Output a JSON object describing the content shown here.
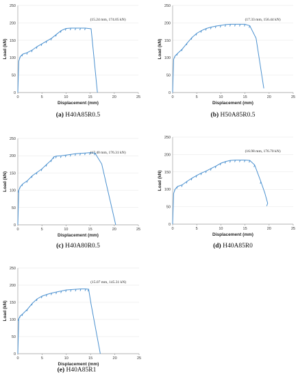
{
  "chart_data": [
    {
      "type": "line",
      "caption_letter": "(a)",
      "caption_name": " H40A85R0.5",
      "annotation": "(15.24 mm, 174.05 kN)",
      "xlabel": "Displacement (mm)",
      "ylabel": "Load (kN)",
      "xlim": [
        0,
        25
      ],
      "ylim": [
        0,
        250
      ],
      "xticks": [
        0,
        5,
        10,
        15,
        20,
        25
      ],
      "yticks": [
        0,
        50,
        100,
        150,
        200,
        250
      ],
      "grid": "horizontal",
      "series": [
        {
          "x": [
            0,
            0.2,
            0.5,
            1,
            2,
            3,
            4,
            5,
            6,
            7,
            8,
            9,
            10,
            11,
            12,
            13,
            14,
            15.2,
            16.5
          ],
          "y": [
            0,
            90,
            103,
            110,
            115,
            122,
            132,
            140,
            148,
            156,
            167,
            178,
            184,
            185,
            185,
            185,
            185,
            183,
            0
          ]
        }
      ]
    },
    {
      "type": "line",
      "caption_letter": "(b)",
      "caption_name": " H50A85R0.5",
      "annotation": "(17.33 mm, 156.44 kN)",
      "xlabel": "Displacement (mm)",
      "ylabel": "Load (kN)",
      "xlim": [
        0,
        25
      ],
      "ylim": [
        0,
        250
      ],
      "xticks": [
        0,
        5,
        10,
        15,
        20,
        25
      ],
      "yticks": [
        0,
        50,
        100,
        150,
        200,
        250
      ],
      "grid": "horizontal",
      "series": [
        {
          "x": [
            0,
            0.2,
            0.5,
            1,
            2,
            3,
            4,
            5,
            6,
            7,
            8,
            9,
            10,
            11,
            12,
            13,
            14,
            15,
            16,
            17.3,
            18.9
          ],
          "y": [
            0,
            95,
            105,
            112,
            125,
            142,
            158,
            170,
            178,
            184,
            188,
            191,
            193,
            195,
            196,
            196,
            196,
            196,
            192,
            156,
            12
          ]
        }
      ]
    },
    {
      "type": "line",
      "caption_letter": "(c)",
      "caption_name": " H40A80R0.5",
      "annotation": "(17.40 mm, 176.31 kN)",
      "xlabel": "Displacement (mm)",
      "ylabel": "Load (kN)",
      "xlim": [
        0,
        25
      ],
      "ylim": [
        0,
        250
      ],
      "xticks": [
        0,
        5,
        10,
        15,
        20,
        25
      ],
      "yticks": [
        0,
        50,
        100,
        150,
        200,
        250
      ],
      "grid": "horizontal",
      "series": [
        {
          "x": [
            0,
            0.2,
            0.5,
            1,
            2,
            3,
            4,
            5,
            6,
            7,
            7.5,
            8,
            9,
            10,
            11,
            12,
            13,
            14,
            15,
            16,
            17.4,
            20.3
          ],
          "y": [
            0,
            100,
            110,
            118,
            128,
            142,
            152,
            162,
            175,
            188,
            197,
            199,
            200,
            202,
            204,
            206,
            207,
            208,
            209,
            208,
            176,
            0
          ]
        }
      ]
    },
    {
      "type": "line",
      "caption_letter": "(d)",
      "caption_name": " H40A85R0",
      "annotation": "(16.98 mm, 176.70 kN)",
      "xlabel": "Displacement (mm)",
      "ylabel": "Load (kN)",
      "xlim": [
        0,
        25
      ],
      "ylim": [
        0,
        250
      ],
      "xticks": [
        0,
        5,
        10,
        15,
        20,
        25
      ],
      "yticks": [
        0,
        50,
        100,
        150,
        200,
        250
      ],
      "grid": "horizontal",
      "series": [
        {
          "x": [
            0,
            0.2,
            0.5,
            1,
            2,
            3,
            4,
            5,
            6,
            7,
            8,
            9,
            10,
            11,
            12,
            13,
            14,
            15,
            16,
            17,
            18.3,
            19.1,
            19.5,
            19.7,
            19.5
          ],
          "y": [
            0,
            88,
            100,
            108,
            113,
            123,
            132,
            140,
            147,
            153,
            160,
            167,
            175,
            180,
            183,
            184,
            184,
            184,
            183,
            170,
            122,
            90,
            70,
            60,
            52
          ]
        }
      ]
    },
    {
      "type": "line",
      "caption_letter": "(e)",
      "caption_name": " H40A85R1",
      "annotation": "(15.07 mm, 145.31 kN)",
      "xlabel": "Displacement (mm)",
      "ylabel": "Load (kN)",
      "xlim": [
        0,
        25
      ],
      "ylim": [
        0,
        250
      ],
      "xticks": [
        0,
        5,
        10,
        15,
        20,
        25
      ],
      "yticks": [
        0,
        50,
        100,
        150,
        200,
        250
      ],
      "grid": "horizontal",
      "series": [
        {
          "x": [
            0,
            0.2,
            0.5,
            1,
            2,
            3,
            4,
            5,
            6,
            7,
            8,
            9,
            10,
            11,
            12,
            13,
            14,
            14.6,
            15.1,
            17
          ],
          "y": [
            0,
            102,
            110,
            116,
            130,
            147,
            160,
            168,
            173,
            177,
            180,
            183,
            186,
            187,
            188,
            189,
            189,
            188,
            145,
            0
          ]
        }
      ]
    }
  ]
}
